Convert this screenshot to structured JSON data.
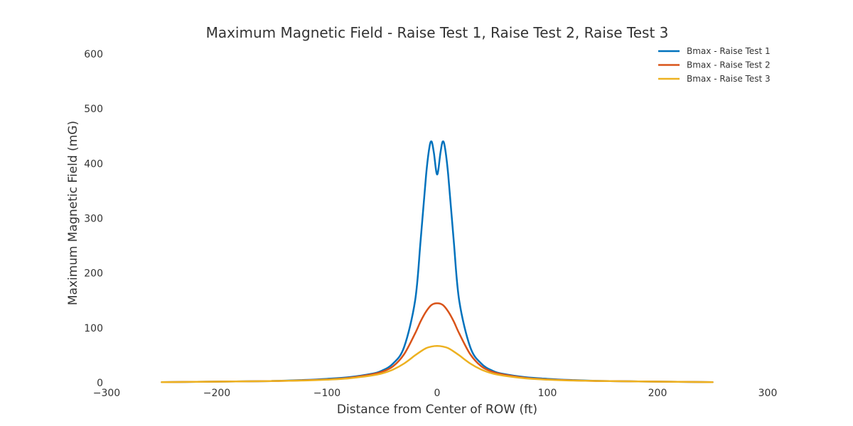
{
  "chart_data": {
    "type": "line",
    "title": "Maximum Magnetic Field - Raise Test 1, Raise Test 2, Raise Test 3",
    "xlabel": "Distance from Center of ROW (ft)",
    "ylabel": "Maximum Magnetic Field (mG)",
    "xlim": [
      -300,
      300
    ],
    "ylim": [
      0,
      600
    ],
    "xticks": [
      "−300",
      "−200",
      "−100",
      "0",
      "100",
      "200",
      "300"
    ],
    "yticks": [
      "0",
      "100",
      "200",
      "300",
      "400",
      "500",
      "600"
    ],
    "grid": false,
    "legend_position": "top-right",
    "series": [
      {
        "name": "Bmax - Raise Test 1",
        "color": "#0072BD",
        "x": [
          -250,
          -200,
          -150,
          -120,
          -100,
          -80,
          -60,
          -50,
          -40,
          -30,
          -20,
          -15,
          -10,
          -7,
          -5,
          -3,
          0,
          3,
          5,
          7,
          10,
          15,
          20,
          30,
          40,
          50,
          60,
          80,
          100,
          120,
          150,
          200,
          250
        ],
        "y": [
          1,
          2,
          3,
          5,
          7,
          10,
          16,
          22,
          35,
          65,
          150,
          260,
          380,
          430,
          440,
          420,
          380,
          420,
          440,
          430,
          380,
          260,
          150,
          65,
          35,
          22,
          16,
          10,
          7,
          5,
          3,
          2,
          1
        ]
      },
      {
        "name": "Bmax - Raise Test 2",
        "color": "#D95319",
        "x": [
          -250,
          -200,
          -150,
          -120,
          -100,
          -80,
          -60,
          -50,
          -40,
          -30,
          -20,
          -15,
          -10,
          -5,
          0,
          5,
          10,
          15,
          20,
          30,
          40,
          50,
          60,
          80,
          100,
          120,
          150,
          200,
          250
        ],
        "y": [
          1,
          2,
          3,
          4.5,
          6,
          9,
          15,
          20,
          30,
          52,
          90,
          112,
          130,
          142,
          145,
          142,
          130,
          112,
          90,
          52,
          30,
          20,
          15,
          9,
          6,
          4.5,
          3,
          2,
          1
        ]
      },
      {
        "name": "Bmax - Raise Test 3",
        "color": "#EDB120",
        "x": [
          -250,
          -200,
          -150,
          -120,
          -100,
          -80,
          -60,
          -50,
          -40,
          -30,
          -20,
          -15,
          -10,
          -5,
          0,
          5,
          10,
          15,
          20,
          30,
          40,
          50,
          60,
          80,
          100,
          120,
          150,
          200,
          250
        ],
        "y": [
          1,
          2,
          3,
          4,
          5.5,
          8,
          13,
          17,
          24,
          35,
          50,
          57,
          63,
          66,
          67,
          66,
          63,
          57,
          50,
          35,
          24,
          17,
          13,
          8,
          5.5,
          4,
          3,
          2,
          1
        ]
      }
    ]
  }
}
